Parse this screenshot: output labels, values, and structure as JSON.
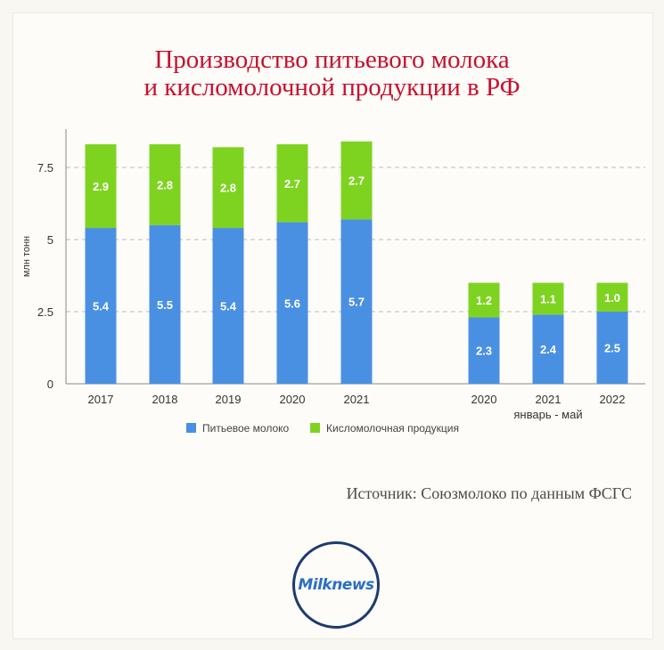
{
  "title_lines": [
    "Производство питьевого молока",
    "и кисломолочной продукции в РФ"
  ],
  "source": "Источник: Союзмолоко по данным ФСГС",
  "logo": "Milknews",
  "chart_data": {
    "type": "bar",
    "stacked": true,
    "ylabel": "млн тонн",
    "ylim": [
      0,
      9
    ],
    "yticks": [
      "0",
      "2.5",
      "5",
      "7.5"
    ],
    "categories": [
      "2017",
      "2018",
      "2019",
      "2020",
      "2021",
      "2020",
      "2021",
      "2022"
    ],
    "group_label": "январь - май",
    "series": [
      {
        "name": "Питьевое молоко",
        "color": "#4a90e2",
        "values": [
          5.4,
          5.5,
          5.4,
          5.6,
          5.7,
          2.3,
          2.4,
          2.5
        ]
      },
      {
        "name": "Кисломолочная продукция",
        "color": "#7ed321",
        "values": [
          2.9,
          2.8,
          2.8,
          2.7,
          2.7,
          1.2,
          1.1,
          1.0
        ]
      }
    ],
    "legend_position": "bottom",
    "grid": true
  }
}
